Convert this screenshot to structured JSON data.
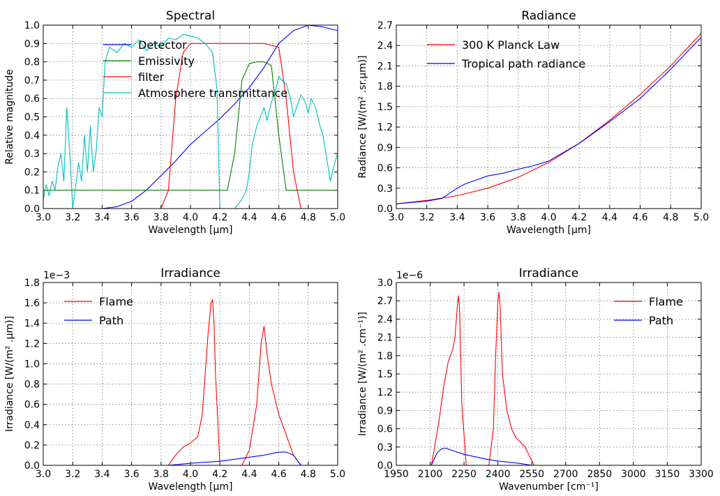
{
  "chart_data": [
    {
      "type": "line",
      "title": "Spectral",
      "xlabel": "Wavelength [μm]",
      "ylabel": "Relative magnitude",
      "xlim": [
        3.0,
        5.0
      ],
      "ylim": [
        0.0,
        1.0
      ],
      "xticks": [
        "3.0",
        "3.2",
        "3.4",
        "3.6",
        "3.8",
        "4.0",
        "4.2",
        "4.4",
        "4.6",
        "4.8",
        "5.0"
      ],
      "yticks": [
        "0.0",
        "0.1",
        "0.2",
        "0.3",
        "0.4",
        "0.5",
        "0.6",
        "0.7",
        "0.8",
        "0.9",
        "1.0"
      ],
      "grid": true,
      "legend_position": "top-left",
      "series": [
        {
          "name": "Detector",
          "color": "#0000ff",
          "x": [
            3.0,
            3.4,
            3.5,
            3.6,
            3.7,
            3.8,
            3.9,
            4.0,
            4.1,
            4.2,
            4.3,
            4.4,
            4.5,
            4.6,
            4.7,
            4.8,
            4.9,
            5.0
          ],
          "y": [
            0,
            0,
            0.01,
            0.04,
            0.1,
            0.18,
            0.26,
            0.35,
            0.42,
            0.49,
            0.57,
            0.66,
            0.77,
            0.9,
            0.97,
            1.0,
            0.99,
            0.97
          ]
        },
        {
          "name": "Emissivity",
          "color": "#008000",
          "x": [
            3.0,
            4.25,
            4.3,
            4.35,
            4.4,
            4.45,
            4.5,
            4.55,
            4.6,
            4.65,
            5.0
          ],
          "y": [
            0.1,
            0.1,
            0.3,
            0.7,
            0.79,
            0.8,
            0.8,
            0.78,
            0.4,
            0.1,
            0.1
          ]
        },
        {
          "name": "filter",
          "color": "#ff0000",
          "x": [
            3.0,
            3.8,
            3.85,
            3.9,
            3.95,
            4.0,
            4.1,
            4.2,
            4.3,
            4.4,
            4.5,
            4.6,
            4.65,
            4.7,
            4.75,
            4.8,
            5.0
          ],
          "y": [
            0,
            0,
            0.1,
            0.6,
            0.85,
            0.9,
            0.9,
            0.9,
            0.9,
            0.9,
            0.9,
            0.88,
            0.6,
            0.2,
            0,
            0,
            0
          ]
        },
        {
          "name": "Atmosphere transmittance",
          "color": "#00bfbf",
          "x": [
            3.0,
            3.02,
            3.04,
            3.06,
            3.08,
            3.1,
            3.12,
            3.14,
            3.16,
            3.18,
            3.2,
            3.22,
            3.24,
            3.26,
            3.28,
            3.3,
            3.32,
            3.34,
            3.36,
            3.38,
            3.4,
            3.42,
            3.45,
            3.5,
            3.55,
            3.6,
            3.65,
            3.7,
            3.75,
            3.8,
            3.85,
            3.9,
            3.95,
            4.0,
            4.05,
            4.1,
            4.15,
            4.18,
            4.2,
            4.21,
            4.3,
            4.35,
            4.38,
            4.4,
            4.42,
            4.45,
            4.5,
            4.52,
            4.55,
            4.58,
            4.6,
            4.62,
            4.65,
            4.68,
            4.7,
            4.72,
            4.75,
            4.78,
            4.8,
            4.82,
            4.85,
            4.88,
            4.9,
            4.92,
            4.95,
            4.98,
            5.0
          ],
          "y": [
            0.05,
            0.13,
            0.07,
            0.15,
            0.1,
            0.23,
            0.3,
            0.15,
            0.55,
            0.3,
            0.0,
            0.12,
            0.25,
            0.15,
            0.4,
            0.2,
            0.45,
            0.2,
            0.32,
            0.55,
            0.5,
            0.8,
            0.88,
            0.85,
            0.9,
            0.88,
            0.92,
            0.86,
            0.9,
            0.88,
            0.93,
            0.92,
            0.95,
            0.94,
            0.93,
            0.9,
            0.85,
            0.65,
            0.0,
            0.0,
            0.0,
            0.05,
            0.1,
            0.2,
            0.35,
            0.45,
            0.55,
            0.48,
            0.58,
            0.65,
            0.72,
            0.7,
            0.68,
            0.6,
            0.5,
            0.55,
            0.62,
            0.58,
            0.52,
            0.6,
            0.55,
            0.45,
            0.4,
            0.3,
            0.15,
            0.25,
            0.3
          ]
        }
      ]
    },
    {
      "type": "line",
      "title": "Radiance",
      "xlabel": "Wavelength [μm]",
      "ylabel": "Radiance [W/(m² .sr.μm)]",
      "xlim": [
        3.0,
        5.0
      ],
      "ylim": [
        0.0,
        2.7
      ],
      "xticks": [
        "3.0",
        "3.2",
        "3.4",
        "3.6",
        "3.8",
        "4.0",
        "4.2",
        "4.4",
        "4.6",
        "4.8",
        "5.0"
      ],
      "yticks": [
        "0.0",
        "0.3",
        "0.6",
        "0.9",
        "1.2",
        "1.5",
        "1.8",
        "2.1",
        "2.4",
        "2.7"
      ],
      "grid": true,
      "legend_position": "top-left",
      "series": [
        {
          "name": "300 K Planck Law",
          "color": "#ff0000",
          "x": [
            3.0,
            3.2,
            3.4,
            3.6,
            3.8,
            4.0,
            4.2,
            4.4,
            4.6,
            4.8,
            5.0
          ],
          "y": [
            0.07,
            0.12,
            0.19,
            0.3,
            0.46,
            0.68,
            0.96,
            1.3,
            1.68,
            2.1,
            2.58
          ]
        },
        {
          "name": "Tropical path radiance",
          "color": "#0000ff",
          "x": [
            3.0,
            3.2,
            3.3,
            3.4,
            3.45,
            3.5,
            3.55,
            3.6,
            3.65,
            3.7,
            3.8,
            3.9,
            4.0,
            4.2,
            4.4,
            4.6,
            4.8,
            5.0
          ],
          "y": [
            0.07,
            0.11,
            0.15,
            0.3,
            0.36,
            0.4,
            0.44,
            0.48,
            0.5,
            0.52,
            0.58,
            0.63,
            0.7,
            0.96,
            1.28,
            1.62,
            2.05,
            2.52
          ]
        }
      ]
    },
    {
      "type": "line",
      "title": "Irradiance",
      "xlabel": "Wavelength [μm]",
      "ylabel": "Irradiance [W/(m² .μm)]",
      "offset_label": "1e−3",
      "xlim": [
        3.0,
        5.0
      ],
      "ylim": [
        0.0,
        1.8
      ],
      "xticks": [
        "3.0",
        "3.2",
        "3.4",
        "3.6",
        "3.8",
        "4.0",
        "4.2",
        "4.4",
        "4.6",
        "4.8",
        "5.0"
      ],
      "yticks": [
        "0.0",
        "0.2",
        "0.4",
        "0.6",
        "0.8",
        "1.0",
        "1.2",
        "1.4",
        "1.6",
        "1.8"
      ],
      "grid": true,
      "legend_position": "top-left",
      "series": [
        {
          "name": "Flame",
          "color": "#ff0000",
          "x": [
            3.85,
            3.9,
            3.95,
            4.0,
            4.05,
            4.08,
            4.1,
            4.12,
            4.14,
            4.15,
            4.16,
            4.17,
            4.2,
            4.35,
            4.4,
            4.45,
            4.48,
            4.5,
            4.52,
            4.55,
            4.6,
            4.65,
            4.7,
            4.75
          ],
          "y": [
            0,
            0.1,
            0.18,
            0.22,
            0.28,
            0.5,
            0.9,
            1.3,
            1.6,
            1.63,
            1.4,
            0.9,
            0,
            0,
            0.15,
            0.6,
            1.2,
            1.37,
            1.1,
            0.8,
            0.5,
            0.3,
            0.1,
            0
          ]
        },
        {
          "name": "Path",
          "color": "#0000ff",
          "x": [
            3.85,
            4.0,
            4.2,
            4.4,
            4.5,
            4.6,
            4.65,
            4.7,
            4.75
          ],
          "y": [
            0,
            0.02,
            0.04,
            0.08,
            0.1,
            0.13,
            0.13,
            0.1,
            0
          ]
        }
      ]
    },
    {
      "type": "line",
      "title": "Irradiance",
      "xlabel": "Wavenumber [cm⁻¹]",
      "ylabel": "Irradiance [W/(m² .cm⁻¹)]",
      "offset_label": "1e−6",
      "xlim": [
        1950,
        3300
      ],
      "ylim": [
        0.0,
        3.0
      ],
      "xticks": [
        "1950",
        "2100",
        "2250",
        "2400",
        "2550",
        "2700",
        "2850",
        "3000",
        "3150",
        "3300"
      ],
      "yticks": [
        "0.0",
        "0.3",
        "0.6",
        "0.9",
        "1.2",
        "1.5",
        "1.8",
        "2.1",
        "2.4",
        "2.7",
        "3.0"
      ],
      "grid": true,
      "legend_position": "top-right",
      "series": [
        {
          "name": "Flame",
          "color": "#ff0000",
          "x": [
            2105,
            2120,
            2140,
            2160,
            2180,
            2200,
            2210,
            2220,
            2225,
            2230,
            2235,
            2240,
            2260,
            2360,
            2380,
            2390,
            2400,
            2405,
            2410,
            2420,
            2440,
            2460,
            2480,
            2500,
            2520,
            2540,
            2560
          ],
          "y": [
            0,
            0.3,
            0.75,
            1.3,
            1.7,
            1.9,
            2.1,
            2.6,
            2.78,
            2.6,
            1.8,
            1.0,
            0,
            0,
            0.6,
            1.8,
            2.7,
            2.84,
            2.6,
            1.5,
            0.9,
            0.6,
            0.45,
            0.38,
            0.3,
            0.15,
            0
          ]
        },
        {
          "name": "Path",
          "color": "#0000ff",
          "x": [
            2105,
            2130,
            2150,
            2170,
            2200,
            2250,
            2300,
            2350,
            2400,
            2450,
            2500,
            2550
          ],
          "y": [
            0,
            0.2,
            0.27,
            0.28,
            0.24,
            0.18,
            0.14,
            0.1,
            0.07,
            0.05,
            0.03,
            0
          ]
        }
      ]
    }
  ]
}
